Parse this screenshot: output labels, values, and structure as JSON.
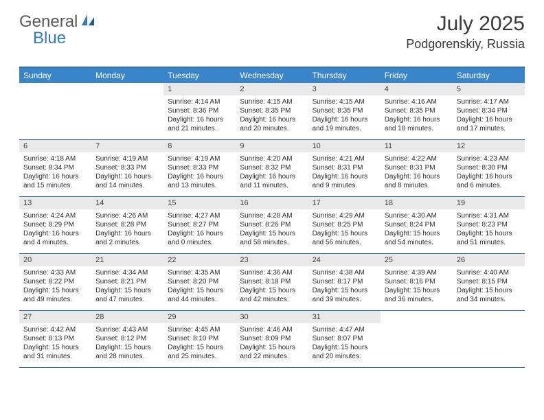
{
  "logo": {
    "text1": "General",
    "text2": "Blue"
  },
  "title": {
    "month": "July 2025",
    "location": "Podgorenskiy, Russia"
  },
  "colors": {
    "header_bg": "#3a85c9",
    "header_text": "#ffffff",
    "rule": "#2f6fa8",
    "daynum_bg": "#e9e9e9",
    "body_text": "#2b2b2b",
    "logo_gray": "#5a5a5a",
    "logo_blue": "#2f7bbf",
    "page_bg": "#ffffff"
  },
  "layout": {
    "cols": 7,
    "rows": 5,
    "first_day_col": 2
  },
  "dow": [
    "Sunday",
    "Monday",
    "Tuesday",
    "Wednesday",
    "Thursday",
    "Friday",
    "Saturday"
  ],
  "days": [
    {
      "n": 1,
      "sr": "4:14 AM",
      "ss": "8:36 PM",
      "dl": "16 hours and 21 minutes."
    },
    {
      "n": 2,
      "sr": "4:15 AM",
      "ss": "8:35 PM",
      "dl": "16 hours and 20 minutes."
    },
    {
      "n": 3,
      "sr": "4:15 AM",
      "ss": "8:35 PM",
      "dl": "16 hours and 19 minutes."
    },
    {
      "n": 4,
      "sr": "4:16 AM",
      "ss": "8:35 PM",
      "dl": "16 hours and 18 minutes."
    },
    {
      "n": 5,
      "sr": "4:17 AM",
      "ss": "8:34 PM",
      "dl": "16 hours and 17 minutes."
    },
    {
      "n": 6,
      "sr": "4:18 AM",
      "ss": "8:34 PM",
      "dl": "16 hours and 15 minutes."
    },
    {
      "n": 7,
      "sr": "4:19 AM",
      "ss": "8:33 PM",
      "dl": "16 hours and 14 minutes."
    },
    {
      "n": 8,
      "sr": "4:19 AM",
      "ss": "8:33 PM",
      "dl": "16 hours and 13 minutes."
    },
    {
      "n": 9,
      "sr": "4:20 AM",
      "ss": "8:32 PM",
      "dl": "16 hours and 11 minutes."
    },
    {
      "n": 10,
      "sr": "4:21 AM",
      "ss": "8:31 PM",
      "dl": "16 hours and 9 minutes."
    },
    {
      "n": 11,
      "sr": "4:22 AM",
      "ss": "8:31 PM",
      "dl": "16 hours and 8 minutes."
    },
    {
      "n": 12,
      "sr": "4:23 AM",
      "ss": "8:30 PM",
      "dl": "16 hours and 6 minutes."
    },
    {
      "n": 13,
      "sr": "4:24 AM",
      "ss": "8:29 PM",
      "dl": "16 hours and 4 minutes."
    },
    {
      "n": 14,
      "sr": "4:26 AM",
      "ss": "8:28 PM",
      "dl": "16 hours and 2 minutes."
    },
    {
      "n": 15,
      "sr": "4:27 AM",
      "ss": "8:27 PM",
      "dl": "16 hours and 0 minutes."
    },
    {
      "n": 16,
      "sr": "4:28 AM",
      "ss": "8:26 PM",
      "dl": "15 hours and 58 minutes."
    },
    {
      "n": 17,
      "sr": "4:29 AM",
      "ss": "8:25 PM",
      "dl": "15 hours and 56 minutes."
    },
    {
      "n": 18,
      "sr": "4:30 AM",
      "ss": "8:24 PM",
      "dl": "15 hours and 54 minutes."
    },
    {
      "n": 19,
      "sr": "4:31 AM",
      "ss": "8:23 PM",
      "dl": "15 hours and 51 minutes."
    },
    {
      "n": 20,
      "sr": "4:33 AM",
      "ss": "8:22 PM",
      "dl": "15 hours and 49 minutes."
    },
    {
      "n": 21,
      "sr": "4:34 AM",
      "ss": "8:21 PM",
      "dl": "15 hours and 47 minutes."
    },
    {
      "n": 22,
      "sr": "4:35 AM",
      "ss": "8:20 PM",
      "dl": "15 hours and 44 minutes."
    },
    {
      "n": 23,
      "sr": "4:36 AM",
      "ss": "8:18 PM",
      "dl": "15 hours and 42 minutes."
    },
    {
      "n": 24,
      "sr": "4:38 AM",
      "ss": "8:17 PM",
      "dl": "15 hours and 39 minutes."
    },
    {
      "n": 25,
      "sr": "4:39 AM",
      "ss": "8:16 PM",
      "dl": "15 hours and 36 minutes."
    },
    {
      "n": 26,
      "sr": "4:40 AM",
      "ss": "8:15 PM",
      "dl": "15 hours and 34 minutes."
    },
    {
      "n": 27,
      "sr": "4:42 AM",
      "ss": "8:13 PM",
      "dl": "15 hours and 31 minutes."
    },
    {
      "n": 28,
      "sr": "4:43 AM",
      "ss": "8:12 PM",
      "dl": "15 hours and 28 minutes."
    },
    {
      "n": 29,
      "sr": "4:45 AM",
      "ss": "8:10 PM",
      "dl": "15 hours and 25 minutes."
    },
    {
      "n": 30,
      "sr": "4:46 AM",
      "ss": "8:09 PM",
      "dl": "15 hours and 22 minutes."
    },
    {
      "n": 31,
      "sr": "4:47 AM",
      "ss": "8:07 PM",
      "dl": "15 hours and 20 minutes."
    }
  ],
  "labels": {
    "sunrise": "Sunrise:",
    "sunset": "Sunset:",
    "daylight": "Daylight:"
  }
}
